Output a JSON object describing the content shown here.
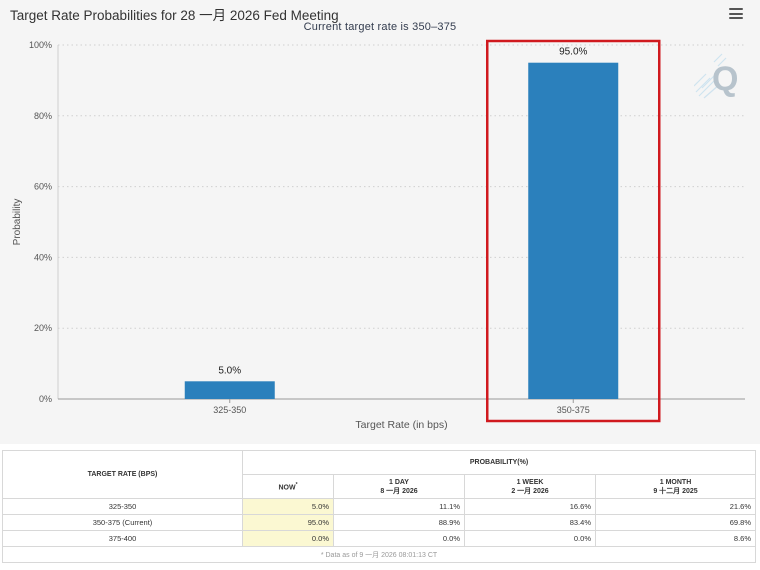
{
  "header": {
    "title": "Target Rate Probabilities for 28 一月 2026 Fed Meeting",
    "subtitle": "Current target rate is 350–375"
  },
  "chart_data": {
    "type": "bar",
    "categories": [
      "325-350",
      "350-375"
    ],
    "values": [
      5.0,
      95.0
    ],
    "data_labels": [
      "5.0%",
      "95.0%"
    ],
    "xlabel": "Target Rate (in bps)",
    "ylabel": "Probability",
    "ylim": [
      0,
      100
    ],
    "y_ticks": [
      "0%",
      "20%",
      "40%",
      "60%",
      "80%",
      "100%"
    ],
    "y_tick_values": [
      0,
      20,
      40,
      60,
      80,
      100
    ],
    "grid": true,
    "bar_color": "#2b80bc",
    "highlight_color": "#d0191e",
    "highlighted_category": "350-375"
  },
  "table": {
    "rate_header": "TARGET RATE (BPS)",
    "prob_header": "PROBABILITY(%)",
    "columns": [
      {
        "line1": "NOW",
        "line2": ""
      },
      {
        "line1": "1 DAY",
        "line2": "8 一月 2026"
      },
      {
        "line1": "1 WEEK",
        "line2": "2 一月 2026"
      },
      {
        "line1": "1 MONTH",
        "line2": "9 十二月 2025"
      }
    ],
    "now_marker": "*",
    "rows": [
      {
        "rate": "325-350",
        "values": [
          "5.0%",
          "11.1%",
          "16.6%",
          "21.6%"
        ]
      },
      {
        "rate": "350-375 (Current)",
        "values": [
          "95.0%",
          "88.9%",
          "83.4%",
          "69.8%"
        ]
      },
      {
        "rate": "375-400",
        "values": [
          "0.0%",
          "0.0%",
          "0.0%",
          "8.6%"
        ]
      }
    ],
    "footnote": "* Data as of 9 一月 2026 08:01:13 CT"
  },
  "colors": {
    "panel_bg": "#f5f5f5",
    "now_column_bg": "#fbf8d2"
  },
  "icons": {
    "menu": "hamburger-menu-icon",
    "watermark": "quikstrike-logo"
  }
}
